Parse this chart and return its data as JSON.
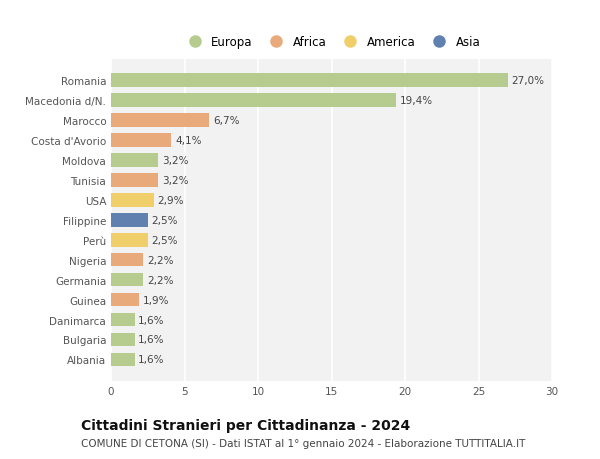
{
  "categories": [
    "Romania",
    "Macedonia d/N.",
    "Marocco",
    "Costa d'Avorio",
    "Moldova",
    "Tunisia",
    "USA",
    "Filippine",
    "Perù",
    "Nigeria",
    "Germania",
    "Guinea",
    "Danimarca",
    "Bulgaria",
    "Albania"
  ],
  "values": [
    27.0,
    19.4,
    6.7,
    4.1,
    3.2,
    3.2,
    2.9,
    2.5,
    2.5,
    2.2,
    2.2,
    1.9,
    1.6,
    1.6,
    1.6
  ],
  "labels": [
    "27,0%",
    "19,4%",
    "6,7%",
    "4,1%",
    "3,2%",
    "3,2%",
    "2,9%",
    "2,5%",
    "2,5%",
    "2,2%",
    "2,2%",
    "1,9%",
    "1,6%",
    "1,6%",
    "1,6%"
  ],
  "continents": [
    "Europa",
    "Europa",
    "Africa",
    "Africa",
    "Europa",
    "Africa",
    "America",
    "Asia",
    "America",
    "Africa",
    "Europa",
    "Africa",
    "Europa",
    "Europa",
    "Europa"
  ],
  "colors": {
    "Europa": "#b5cc8e",
    "Africa": "#e8aa7a",
    "America": "#f0ce6a",
    "Asia": "#6080b0"
  },
  "legend_order": [
    "Europa",
    "Africa",
    "America",
    "Asia"
  ],
  "xlim": [
    0,
    30
  ],
  "xticks": [
    0,
    5,
    10,
    15,
    20,
    25,
    30
  ],
  "title": "Cittadini Stranieri per Cittadinanza - 2024",
  "subtitle": "COMUNE DI CETONA (SI) - Dati ISTAT al 1° gennaio 2024 - Elaborazione TUTTITALIA.IT",
  "bg_color": "#ffffff",
  "plot_bg_color": "#f2f2f2",
  "grid_color": "#ffffff",
  "bar_height": 0.68,
  "label_fontsize": 7.5,
  "tick_fontsize": 7.5,
  "title_fontsize": 10,
  "subtitle_fontsize": 7.5,
  "legend_fontsize": 8.5
}
